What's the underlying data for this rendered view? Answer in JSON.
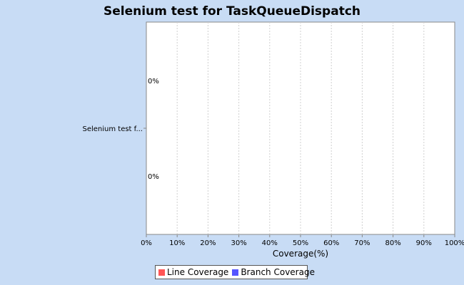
{
  "chart_data": {
    "type": "bar",
    "orientation": "horizontal",
    "title": "Selenium test for TaskQueueDispatch",
    "categories": [
      "Selenium test f..."
    ],
    "series": [
      {
        "name": "Line Coverage",
        "values": [
          0
        ],
        "color": "#ff5555",
        "label": "0%"
      },
      {
        "name": "Branch Coverage",
        "values": [
          0
        ],
        "color": "#5555ff",
        "label": "0%"
      }
    ],
    "xlabel": "Coverage(%)",
    "ylabel": "",
    "xlim": [
      0,
      100
    ],
    "x_ticks": [
      "0%",
      "10%",
      "20%",
      "30%",
      "40%",
      "50%",
      "60%",
      "70%",
      "80%",
      "90%",
      "100%"
    ],
    "grid": true,
    "legend_position": "bottom"
  }
}
